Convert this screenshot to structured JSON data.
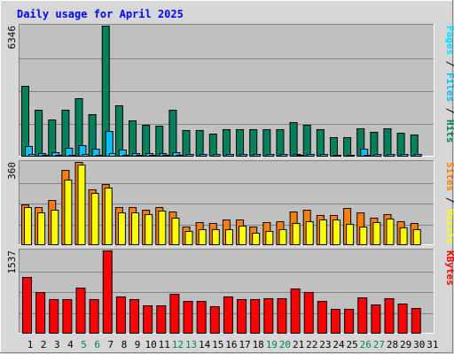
{
  "title": "Daily usage for April 2025",
  "colors": {
    "hits": "#00805c",
    "files": "#00c0ff",
    "pages": "#00e0ff",
    "visits": "#ffff00",
    "sites": "#ff8000",
    "kbytes": "#ff0000",
    "title": "#0000ff",
    "weekend_label": "#00805c",
    "weekday_label": "#000000",
    "panel_bg": "#c0c0c0",
    "frame_bg": "#d7d7d7"
  },
  "chart_data": [
    {
      "type": "bar",
      "panel": "top",
      "y_max_label": "6346",
      "ylim": [
        0,
        6346
      ],
      "grid": true,
      "categories": [
        "1",
        "2",
        "3",
        "4",
        "5",
        "6",
        "7",
        "8",
        "9",
        "10",
        "11",
        "12",
        "13",
        "14",
        "15",
        "16",
        "17",
        "18",
        "19",
        "20",
        "21",
        "22",
        "23",
        "24",
        "25",
        "26",
        "27",
        "28",
        "29",
        "30",
        "31"
      ],
      "weekend_days": [
        "5",
        "6",
        "12",
        "13",
        "19",
        "20",
        "26",
        "27"
      ],
      "legend_side": "right",
      "legend": [
        {
          "text": "Pages",
          "color_key": "pages"
        },
        {
          "text": " / ",
          "color_key": "weekday_label"
        },
        {
          "text": "Files",
          "color_key": "files"
        },
        {
          "text": " / ",
          "color_key": "weekday_label"
        },
        {
          "text": "Hits",
          "color_key": "hits"
        }
      ],
      "series": [
        {
          "name": "Hits",
          "color_key": "hits",
          "values": [
            3410,
            2260,
            1820,
            2260,
            2820,
            2040,
            6346,
            2480,
            1740,
            1540,
            1520,
            2280,
            1300,
            1300,
            1110,
            1350,
            1350,
            1330,
            1330,
            1330,
            1690,
            1560,
            1330,
            940,
            950,
            1380,
            1220,
            1380,
            1160,
            1060,
            null
          ]
        },
        {
          "name": "Files",
          "color_key": "files",
          "values": [
            500,
            180,
            200,
            420,
            540,
            390,
            1250,
            350,
            190,
            180,
            170,
            230,
            140,
            140,
            110,
            130,
            130,
            130,
            140,
            130,
            150,
            150,
            130,
            100,
            100,
            380,
            140,
            140,
            120,
            130,
            null
          ]
        },
        {
          "name": "Pages",
          "color_key": "pages",
          "values": [
            110,
            80,
            90,
            100,
            120,
            100,
            180,
            90,
            70,
            70,
            70,
            90,
            60,
            60,
            50,
            60,
            60,
            60,
            60,
            60,
            70,
            60,
            60,
            50,
            50,
            70,
            60,
            60,
            50,
            50,
            null
          ]
        }
      ]
    },
    {
      "type": "bar",
      "panel": "middle",
      "y_max_label": "360",
      "ylim": [
        0,
        360
      ],
      "grid": true,
      "categories": [
        "1",
        "2",
        "3",
        "4",
        "5",
        "6",
        "7",
        "8",
        "9",
        "10",
        "11",
        "12",
        "13",
        "14",
        "15",
        "16",
        "17",
        "18",
        "19",
        "20",
        "21",
        "22",
        "23",
        "24",
        "25",
        "26",
        "27",
        "28",
        "29",
        "30",
        "31"
      ],
      "legend_side": "right",
      "legend": [
        {
          "text": "Sites",
          "color_key": "sites"
        },
        {
          "text": " / ",
          "color_key": "weekday_label"
        },
        {
          "text": "Visits",
          "color_key": "visits"
        }
      ],
      "series": [
        {
          "name": "Sites",
          "color_key": "sites",
          "values": [
            175,
            165,
            195,
            325,
            360,
            240,
            265,
            165,
            165,
            155,
            165,
            145,
            80,
            100,
            95,
            110,
            110,
            80,
            100,
            105,
            145,
            155,
            130,
            130,
            160,
            140,
            120,
            135,
            105,
            95,
            null
          ]
        },
        {
          "name": "Visits",
          "color_key": "visits",
          "values": [
            165,
            140,
            155,
            285,
            350,
            225,
            250,
            140,
            140,
            135,
            150,
            120,
            60,
            70,
            70,
            70,
            85,
            55,
            60,
            70,
            95,
            105,
            110,
            110,
            90,
            80,
            100,
            115,
            75,
            70,
            null
          ]
        }
      ]
    },
    {
      "type": "bar",
      "panel": "bottom",
      "y_max_label": "1537",
      "ylim": [
        0,
        1537
      ],
      "grid": true,
      "categories": [
        "1",
        "2",
        "3",
        "4",
        "5",
        "6",
        "7",
        "8",
        "9",
        "10",
        "11",
        "12",
        "13",
        "14",
        "15",
        "16",
        "17",
        "18",
        "19",
        "20",
        "21",
        "22",
        "23",
        "24",
        "25",
        "26",
        "27",
        "28",
        "29",
        "30",
        "31"
      ],
      "legend_side": "right",
      "legend": [
        {
          "text": "KBytes",
          "color_key": "kbytes"
        }
      ],
      "series": [
        {
          "name": "KBytes",
          "color_key": "kbytes",
          "values": [
            1040,
            770,
            640,
            640,
            850,
            640,
            1537,
            690,
            640,
            520,
            520,
            740,
            600,
            600,
            500,
            690,
            640,
            640,
            650,
            650,
            830,
            770,
            610,
            450,
            450,
            670,
            540,
            650,
            550,
            480,
            null
          ]
        }
      ]
    }
  ]
}
